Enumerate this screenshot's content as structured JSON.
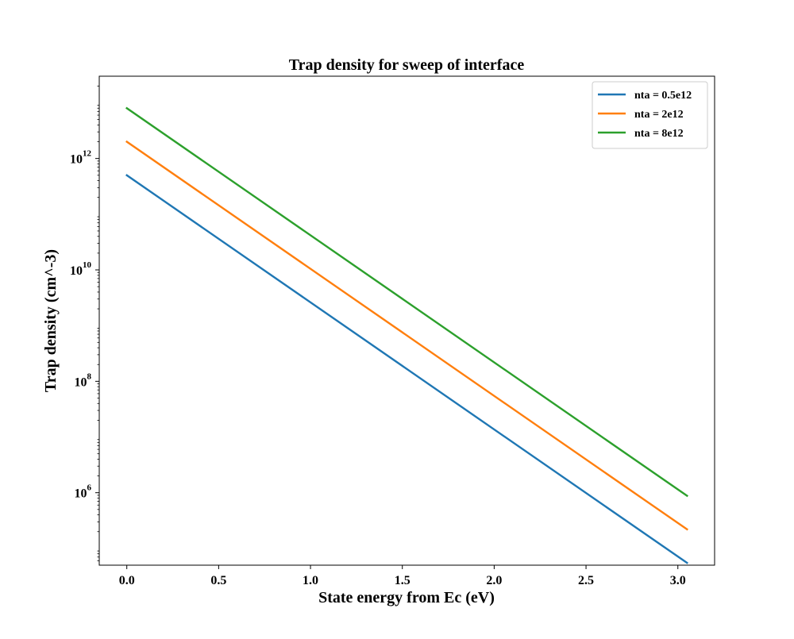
{
  "chart_data": {
    "type": "line",
    "title": "Trap density for sweep of interface",
    "xlabel": "State energy from Ec (eV)",
    "ylabel": "Trap density (cm^-3)",
    "xlim": [
      -0.15,
      3.2
    ],
    "ylim": [
      50000.0,
      30000000000000.0
    ],
    "xscale": "linear",
    "yscale": "log",
    "x_ticks": [
      {
        "value": 0.0,
        "label": "0.0"
      },
      {
        "value": 0.5,
        "label": "0.5"
      },
      {
        "value": 1.0,
        "label": "1.0"
      },
      {
        "value": 1.5,
        "label": "1.5"
      },
      {
        "value": 2.0,
        "label": "2.0"
      },
      {
        "value": 2.5,
        "label": "2.5"
      },
      {
        "value": 3.0,
        "label": "3.0"
      }
    ],
    "y_ticks": [
      {
        "value": 1000000.0,
        "base": "10",
        "exp": "6"
      },
      {
        "value": 100000000.0,
        "base": "10",
        "exp": "8"
      },
      {
        "value": 10000000000.0,
        "base": "10",
        "exp": "10"
      },
      {
        "value": 1000000000000.0,
        "base": "10",
        "exp": "12"
      }
    ],
    "grid": false,
    "legend_position": "top-right",
    "series": [
      {
        "name": "nta = 0.5e12",
        "color": "#1f77b4",
        "x": [
          0.0,
          3.05
        ],
        "y": [
          500000000000.0,
          55000.0
        ]
      },
      {
        "name": "nta = 2e12",
        "color": "#ff7f0e",
        "x": [
          0.0,
          3.05
        ],
        "y": [
          2000000000000.0,
          220000.0
        ]
      },
      {
        "name": "nta = 8e12",
        "color": "#2ca02c",
        "x": [
          0.0,
          3.05
        ],
        "y": [
          8000000000000.0,
          880000.0
        ]
      }
    ]
  }
}
